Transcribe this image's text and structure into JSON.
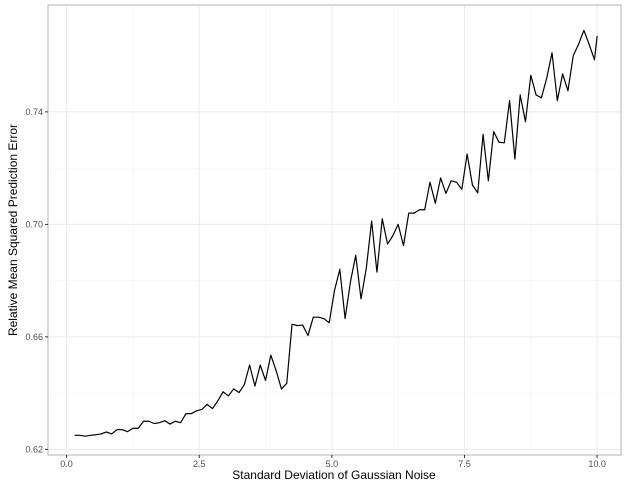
{
  "chart_data": {
    "type": "line",
    "title": "",
    "xlabel": "Standard Deviation of Gaussian Noise",
    "ylabel": "Relative Mean Squared Prediction Error",
    "xlim": [
      -0.35,
      10.45
    ],
    "ylim": [
      0.618,
      0.778
    ],
    "x_ticks": [
      0.0,
      2.5,
      5.0,
      7.5,
      10.0
    ],
    "x_tick_labels": [
      "0.0",
      "2.5",
      "5.0",
      "7.5",
      "10.0"
    ],
    "y_ticks": [
      0.62,
      0.66,
      0.7,
      0.74
    ],
    "y_tick_labels": [
      "0.62",
      "0.66",
      "0.70",
      "0.74"
    ],
    "grid": true,
    "line_color": "#000000",
    "series": [
      {
        "x": [
          0.15,
          0.25,
          0.35,
          0.45,
          0.55,
          0.65,
          0.75,
          0.85,
          0.95,
          1.05,
          1.15,
          1.25,
          1.35,
          1.45,
          1.55,
          1.65,
          1.75,
          1.85,
          1.95,
          2.05,
          2.15,
          2.25,
          2.35,
          2.45,
          2.55,
          2.65,
          2.75,
          2.85,
          2.95,
          3.05,
          3.15,
          3.25,
          3.35,
          3.45,
          3.55,
          3.65,
          3.75,
          3.85,
          3.95,
          4.05,
          4.15,
          4.25,
          4.35,
          4.45,
          4.55,
          4.65,
          4.75,
          4.85,
          4.95,
          5.05,
          5.15,
          5.25,
          5.35,
          5.45,
          5.55,
          5.65,
          5.75,
          5.85,
          5.95,
          6.05,
          6.15,
          6.25,
          6.35,
          6.45,
          6.55,
          6.65,
          6.75,
          6.85,
          6.95,
          7.05,
          7.15,
          7.25,
          7.35,
          7.45,
          7.55,
          7.65,
          7.75,
          7.85,
          7.95,
          8.05,
          8.15,
          8.25,
          8.35,
          8.45,
          8.55,
          8.65,
          8.75,
          8.85,
          8.95,
          9.05,
          9.15,
          9.25,
          9.35,
          9.45,
          9.55,
          9.65,
          9.75,
          9.85,
          9.95,
          10.0
        ],
        "values": [
          0.625,
          0.625,
          0.6247,
          0.625,
          0.6252,
          0.6255,
          0.6262,
          0.6255,
          0.627,
          0.627,
          0.6263,
          0.6275,
          0.6275,
          0.63,
          0.63,
          0.6292,
          0.6295,
          0.6302,
          0.629,
          0.63,
          0.6295,
          0.6327,
          0.6327,
          0.6337,
          0.6342,
          0.636,
          0.6345,
          0.6372,
          0.6405,
          0.639,
          0.6415,
          0.6402,
          0.643,
          0.65,
          0.6425,
          0.65,
          0.6445,
          0.6535,
          0.648,
          0.6415,
          0.6435,
          0.6645,
          0.664,
          0.6642,
          0.6605,
          0.667,
          0.667,
          0.6665,
          0.665,
          0.6765,
          0.684,
          0.6665,
          0.6795,
          0.689,
          0.6735,
          0.6845,
          0.7012,
          0.683,
          0.702,
          0.693,
          0.696,
          0.7,
          0.6925,
          0.704,
          0.704,
          0.7052,
          0.7052,
          0.715,
          0.7075,
          0.7165,
          0.711,
          0.7155,
          0.715,
          0.7125,
          0.725,
          0.714,
          0.7112,
          0.732,
          0.7155,
          0.733,
          0.7292,
          0.729,
          0.744,
          0.7232,
          0.746,
          0.7365,
          0.753,
          0.746,
          0.745,
          0.752,
          0.761,
          0.744,
          0.7535,
          0.7475,
          0.76,
          0.764,
          0.769,
          0.764,
          0.7585,
          0.767
        ]
      }
    ]
  }
}
